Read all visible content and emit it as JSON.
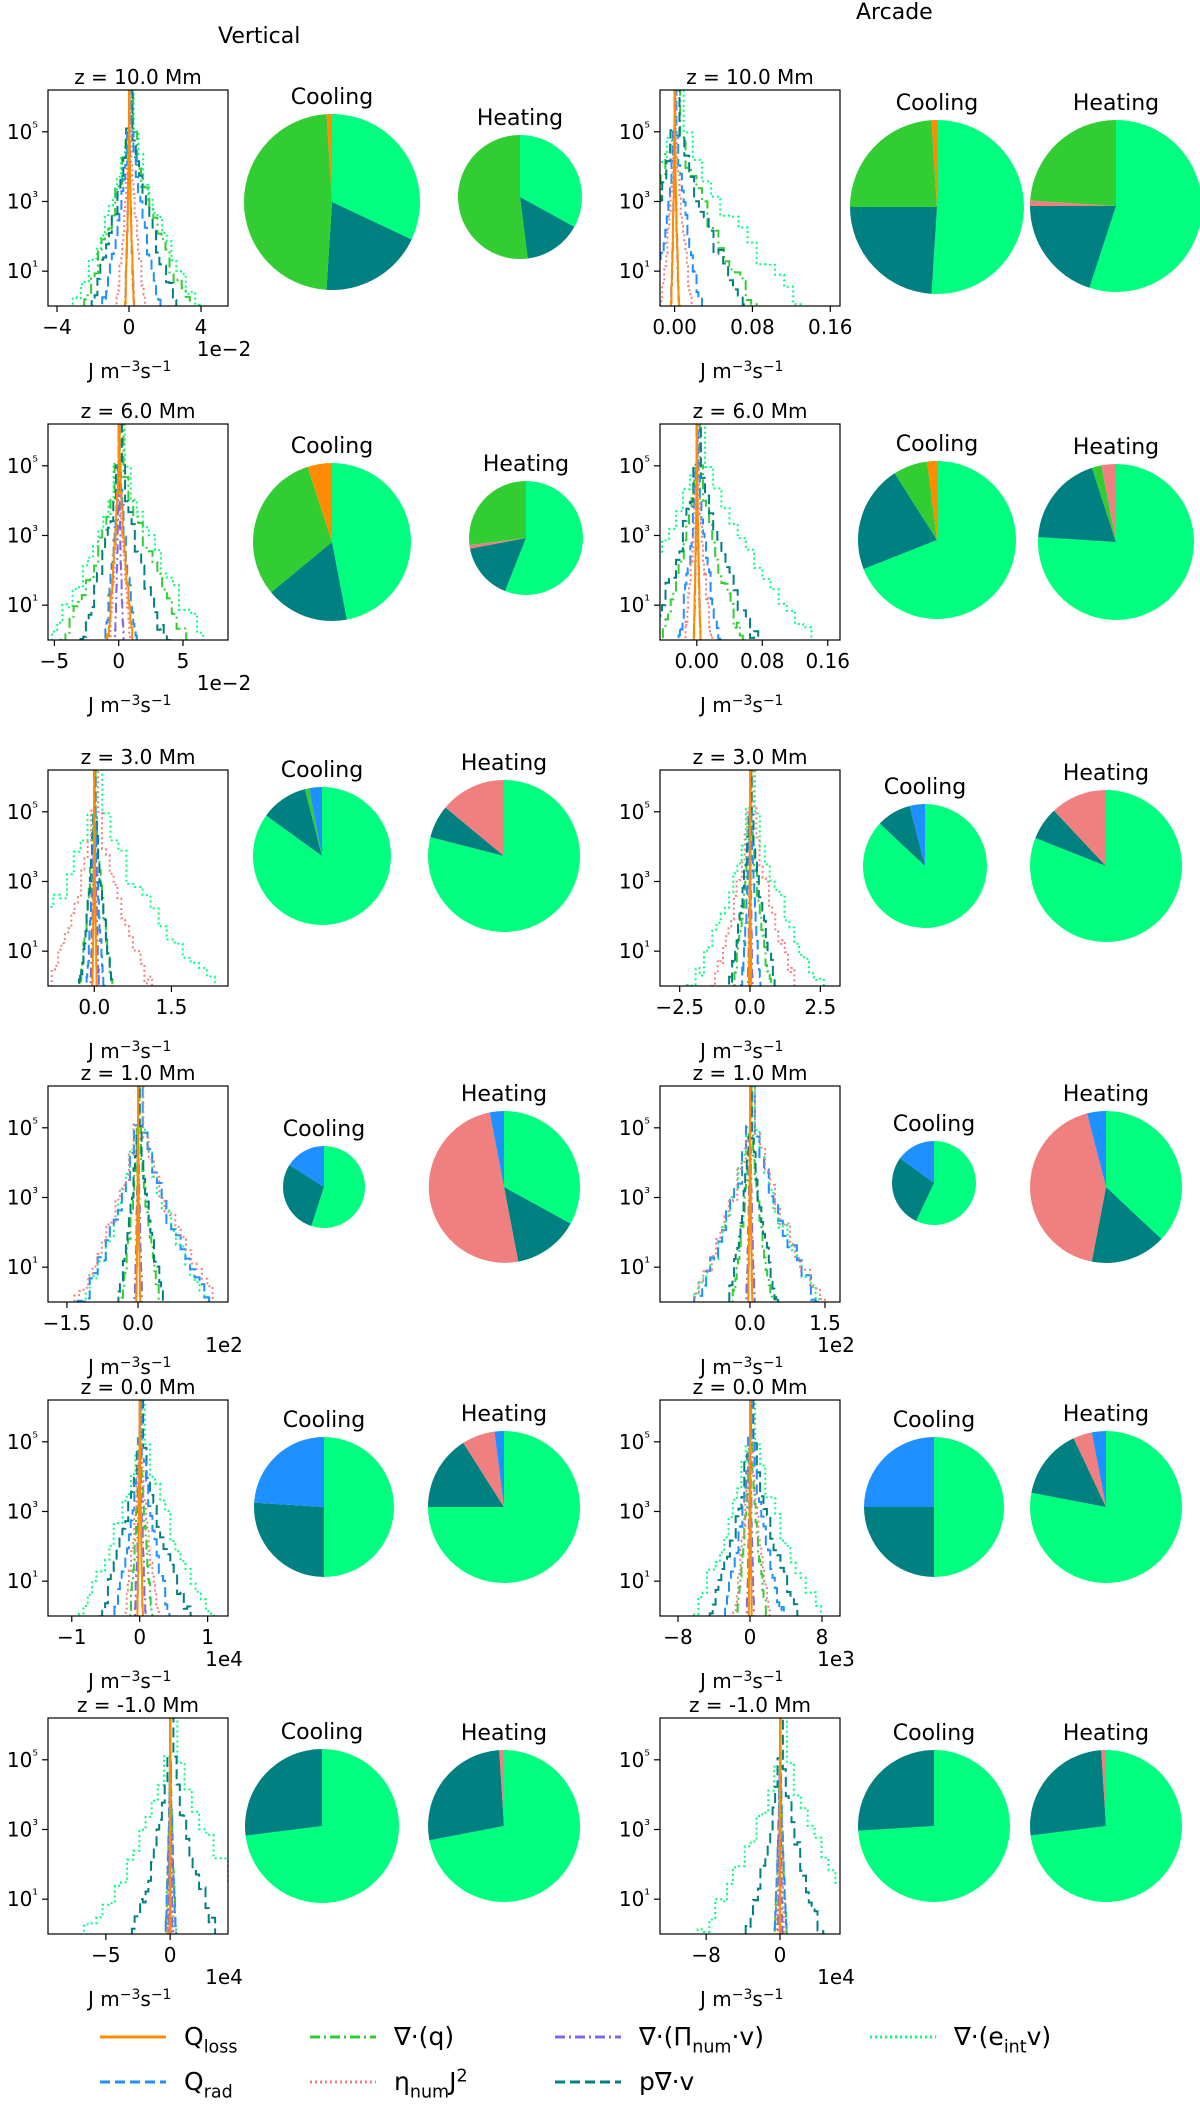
{
  "column_titles": [
    "Vertical",
    "Arcade"
  ],
  "common": {
    "xunit": "J m⁻³s⁻¹",
    "ytick_labels": [
      "10¹",
      "10³",
      "10⁵"
    ],
    "ytick_values": [
      1,
      3,
      5
    ],
    "pie_titles": [
      "Cooling",
      "Heating"
    ],
    "colors": {
      "Q_loss": "#ff8c00",
      "Q_rad": "#1e90ff",
      "div_q": "#32cd32",
      "eta_J2": "#f08080",
      "div_Pi": "#7b68ee",
      "p_div_v": "#008080",
      "div_eint_v": "#00ff7f"
    }
  },
  "legend": [
    {
      "key": "Q_loss",
      "label": "Q_loss",
      "style": "solid"
    },
    {
      "key": "div_q",
      "label": "∇·(q)",
      "style": "dashdot"
    },
    {
      "key": "div_Pi",
      "label": "∇·(Π_num·v)",
      "style": "dashdot"
    },
    {
      "key": "div_eint_v",
      "label": "∇·(e_int v)",
      "style": "dotted"
    },
    {
      "key": "Q_rad",
      "label": "Q_rad",
      "style": "dashed"
    },
    {
      "key": "eta_J2",
      "label": "η_num J²",
      "style": "dotted"
    },
    {
      "key": "p_div_v",
      "label": "p∇·v",
      "style": "dashed"
    }
  ],
  "chart_data": [
    {
      "type": "histogram",
      "column": "Vertical",
      "title": "z = 10.0 Mm",
      "xlim": [
        -4.5,
        5.5
      ],
      "xticks": [
        -4,
        0,
        4
      ],
      "xtick_labels": [
        "−4",
        "0",
        "4"
      ],
      "xscale_label": "1e−2",
      "ylog": true,
      "ylim": [
        0,
        6.2
      ],
      "widths": {
        "div_eint_v": 4.2,
        "div_q": 3.6,
        "p_div_v": 3.0,
        "Q_rad": 2.0,
        "eta_J2": 1.0,
        "div_Pi": 0.3,
        "Q_loss": 0.3
      }
    },
    {
      "type": "pie",
      "column": "Vertical",
      "row": "z = 10.0 Mm",
      "title": "Cooling",
      "slices": [
        {
          "key": "div_eint_v",
          "value": 32
        },
        {
          "key": "p_div_v",
          "value": 19
        },
        {
          "key": "div_q",
          "value": 48
        },
        {
          "key": "Q_loss",
          "value": 1
        }
      ]
    },
    {
      "type": "pie",
      "column": "Vertical",
      "row": "z = 10.0 Mm",
      "title": "Heating",
      "slices": [
        {
          "key": "div_eint_v",
          "value": 33
        },
        {
          "key": "p_div_v",
          "value": 15
        },
        {
          "key": "div_q",
          "value": 52
        }
      ]
    },
    {
      "type": "histogram",
      "column": "Arcade",
      "title": "z = 10.0 Mm",
      "xlim": [
        -0.015,
        0.17
      ],
      "xticks": [
        0,
        0.08,
        0.16
      ],
      "xtick_labels": [
        "0.00",
        "0.08",
        "0.16"
      ],
      "xscale_label": "",
      "ylog": true,
      "ylim": [
        0,
        6.2
      ],
      "widths": {
        "div_eint_v": 0.15,
        "div_q": 0.09,
        "p_div_v": 0.08,
        "Q_rad": 0.03,
        "eta_J2": 0.02,
        "div_Pi": 0.005,
        "Q_loss": 0.005
      }
    },
    {
      "type": "pie",
      "column": "Arcade",
      "row": "z = 10.0 Mm",
      "title": "Cooling",
      "slices": [
        {
          "key": "div_eint_v",
          "value": 51
        },
        {
          "key": "p_div_v",
          "value": 24
        },
        {
          "key": "div_q",
          "value": 24
        },
        {
          "key": "Q_loss",
          "value": 1
        }
      ]
    },
    {
      "type": "pie",
      "column": "Arcade",
      "row": "z = 10.0 Mm",
      "title": "Heating",
      "slices": [
        {
          "key": "div_eint_v",
          "value": 55
        },
        {
          "key": "p_div_v",
          "value": 20
        },
        {
          "key": "eta_J2",
          "value": 1
        },
        {
          "key": "div_q",
          "value": 24
        }
      ]
    },
    {
      "type": "histogram",
      "column": "Vertical",
      "title": "z = 6.0 Mm",
      "xlim": [
        -5.5,
        8.5
      ],
      "xticks": [
        -5,
        0,
        5
      ],
      "xtick_labels": [
        "−5",
        "0",
        "5"
      ],
      "xscale_label": "1e−2",
      "ylog": true,
      "ylim": [
        0,
        6.2
      ],
      "widths": {
        "div_eint_v": 7.5,
        "div_q": 6.0,
        "p_div_v": 4.0,
        "Q_rad": 1.5,
        "eta_J2": 1.0,
        "div_Pi": 0.4,
        "Q_loss": 1.2
      }
    },
    {
      "type": "pie",
      "column": "Vertical",
      "row": "z = 6.0 Mm",
      "title": "Cooling",
      "slices": [
        {
          "key": "div_eint_v",
          "value": 47
        },
        {
          "key": "p_div_v",
          "value": 17
        },
        {
          "key": "div_q",
          "value": 31
        },
        {
          "key": "Q_loss",
          "value": 5
        }
      ]
    },
    {
      "type": "pie",
      "column": "Vertical",
      "row": "z = 6.0 Mm",
      "title": "Heating",
      "slices": [
        {
          "key": "div_eint_v",
          "value": 56
        },
        {
          "key": "p_div_v",
          "value": 16
        },
        {
          "key": "eta_J2",
          "value": 1
        },
        {
          "key": "div_q",
          "value": 27
        }
      ]
    },
    {
      "type": "histogram",
      "column": "Arcade",
      "title": "z = 6.0 Mm",
      "xlim": [
        -0.045,
        0.175
      ],
      "xticks": [
        0,
        0.08,
        0.16
      ],
      "xtick_labels": [
        "0.00",
        "0.08",
        "0.16"
      ],
      "xscale_label": "",
      "ylog": true,
      "ylim": [
        0,
        6.2
      ],
      "widths": {
        "div_eint_v": 0.16,
        "div_q": 0.06,
        "p_div_v": 0.08,
        "Q_rad": 0.03,
        "eta_J2": 0.02,
        "div_Pi": 0.005,
        "Q_loss": 0.005
      }
    },
    {
      "type": "pie",
      "column": "Arcade",
      "row": "z = 6.0 Mm",
      "title": "Cooling",
      "slices": [
        {
          "key": "div_eint_v",
          "value": 69
        },
        {
          "key": "p_div_v",
          "value": 22
        },
        {
          "key": "div_q",
          "value": 7
        },
        {
          "key": "Q_loss",
          "value": 2
        }
      ]
    },
    {
      "type": "pie",
      "column": "Arcade",
      "row": "z = 6.0 Mm",
      "title": "Heating",
      "slices": [
        {
          "key": "div_eint_v",
          "value": 76
        },
        {
          "key": "p_div_v",
          "value": 19
        },
        {
          "key": "div_q",
          "value": 2
        },
        {
          "key": "eta_J2",
          "value": 3
        }
      ]
    },
    {
      "type": "histogram",
      "column": "Vertical",
      "title": "z = 3.0 Mm",
      "xlim": [
        -0.9,
        2.6
      ],
      "xticks": [
        0,
        1.5
      ],
      "xtick_labels": [
        "0.0",
        "1.5"
      ],
      "xscale_label": "",
      "ylog": true,
      "ylim": [
        0,
        6.2
      ],
      "widths": {
        "div_eint_v": 2.5,
        "div_q": 0.4,
        "p_div_v": 0.4,
        "Q_rad": 0.2,
        "eta_J2": 1.2,
        "div_Pi": 0.1,
        "Q_loss": 0.05
      }
    },
    {
      "type": "pie",
      "column": "Vertical",
      "row": "z = 3.0 Mm",
      "title": "Cooling",
      "slices": [
        {
          "key": "div_eint_v",
          "value": 85
        },
        {
          "key": "p_div_v",
          "value": 11
        },
        {
          "key": "div_q",
          "value": 1
        },
        {
          "key": "Q_rad",
          "value": 3
        }
      ]
    },
    {
      "type": "pie",
      "column": "Vertical",
      "row": "z = 3.0 Mm",
      "title": "Heating",
      "slices": [
        {
          "key": "div_eint_v",
          "value": 79
        },
        {
          "key": "p_div_v",
          "value": 7
        },
        {
          "key": "eta_J2",
          "value": 14
        }
      ]
    },
    {
      "type": "histogram",
      "column": "Arcade",
      "title": "z = 3.0 Mm",
      "xlim": [
        -3.2,
        3.2
      ],
      "xticks": [
        -2.5,
        0,
        2.5
      ],
      "xtick_labels": [
        "−2.5",
        "0.0",
        "2.5"
      ],
      "xscale_label": "",
      "ylog": true,
      "ylim": [
        0,
        6.2
      ],
      "widths": {
        "div_eint_v": 2.8,
        "div_q": 0.8,
        "p_div_v": 1.0,
        "Q_rad": 0.4,
        "eta_J2": 1.8,
        "div_Pi": 0.1,
        "Q_loss": 0.05
      }
    },
    {
      "type": "pie",
      "column": "Arcade",
      "row": "z = 3.0 Mm",
      "title": "Cooling",
      "slices": [
        {
          "key": "div_eint_v",
          "value": 87
        },
        {
          "key": "p_div_v",
          "value": 9
        },
        {
          "key": "Q_rad",
          "value": 4
        }
      ]
    },
    {
      "type": "pie",
      "column": "Arcade",
      "row": "z = 3.0 Mm",
      "title": "Heating",
      "slices": [
        {
          "key": "div_eint_v",
          "value": 81
        },
        {
          "key": "p_div_v",
          "value": 7
        },
        {
          "key": "eta_J2",
          "value": 12
        }
      ]
    },
    {
      "type": "histogram",
      "column": "Vertical",
      "title": "z = 1.0 Mm",
      "xlim": [
        -1.9,
        1.9
      ],
      "xticks": [
        -1.5,
        0
      ],
      "xtick_labels": [
        "−1.5",
        "0.0"
      ],
      "xscale_label": "1e2",
      "ylog": true,
      "ylim": [
        0,
        6.2
      ],
      "widths": {
        "div_eint_v": 1.6,
        "div_q": 0.5,
        "p_div_v": 0.6,
        "Q_rad": 1.6,
        "eta_J2": 1.8,
        "div_Pi": 0.1,
        "Q_loss": 0.05
      }
    },
    {
      "type": "pie",
      "column": "Vertical",
      "row": "z = 1.0 Mm",
      "title": "Cooling",
      "slices": [
        {
          "key": "div_eint_v",
          "value": 55
        },
        {
          "key": "p_div_v",
          "value": 29
        },
        {
          "key": "Q_rad",
          "value": 16
        }
      ]
    },
    {
      "type": "pie",
      "column": "Vertical",
      "row": "z = 1.0 Mm",
      "title": "Heating",
      "slices": [
        {
          "key": "div_eint_v",
          "value": 33
        },
        {
          "key": "p_div_v",
          "value": 14
        },
        {
          "key": "eta_J2",
          "value": 50
        },
        {
          "key": "Q_rad",
          "value": 3
        }
      ]
    },
    {
      "type": "histogram",
      "column": "Arcade",
      "title": "z = 1.0 Mm",
      "xlim": [
        -1.8,
        1.8
      ],
      "xticks": [
        0,
        1.5
      ],
      "xtick_labels": [
        "0.0",
        "1.5"
      ],
      "xscale_label": "1e2",
      "ylog": true,
      "ylim": [
        0,
        6.2
      ],
      "widths": {
        "div_eint_v": 1.5,
        "div_q": 0.5,
        "p_div_v": 0.6,
        "Q_rad": 1.5,
        "eta_J2": 1.6,
        "div_Pi": 0.1,
        "Q_loss": 0.05
      }
    },
    {
      "type": "pie",
      "column": "Arcade",
      "row": "z = 1.0 Mm",
      "title": "Cooling",
      "slices": [
        {
          "key": "div_eint_v",
          "value": 57
        },
        {
          "key": "p_div_v",
          "value": 28
        },
        {
          "key": "Q_rad",
          "value": 15
        }
      ]
    },
    {
      "type": "pie",
      "column": "Arcade",
      "row": "z = 1.0 Mm",
      "title": "Heating",
      "slices": [
        {
          "key": "div_eint_v",
          "value": 37
        },
        {
          "key": "p_div_v",
          "value": 16
        },
        {
          "key": "eta_J2",
          "value": 43
        },
        {
          "key": "Q_rad",
          "value": 4
        }
      ]
    },
    {
      "type": "histogram",
      "column": "Vertical",
      "title": "z = 0.0 Mm",
      "xlim": [
        -1.35,
        1.3
      ],
      "xticks": [
        -1,
        0,
        1
      ],
      "xtick_labels": [
        "−1",
        "0",
        "1"
      ],
      "xscale_label": "1e4",
      "ylog": true,
      "ylim": [
        0,
        6.2
      ],
      "widths": {
        "div_eint_v": 1.2,
        "div_q": 0.2,
        "p_div_v": 0.8,
        "Q_rad": 0.5,
        "eta_J2": 0.3,
        "div_Pi": 0.1,
        "Q_loss": 0.05
      }
    },
    {
      "type": "pie",
      "column": "Vertical",
      "row": "z = 0.0 Mm",
      "title": "Cooling",
      "slices": [
        {
          "key": "div_eint_v",
          "value": 50
        },
        {
          "key": "p_div_v",
          "value": 26
        },
        {
          "key": "Q_rad",
          "value": 24
        }
      ]
    },
    {
      "type": "pie",
      "column": "Vertical",
      "row": "z = 0.0 Mm",
      "title": "Heating",
      "slices": [
        {
          "key": "div_eint_v",
          "value": 75
        },
        {
          "key": "p_div_v",
          "value": 16
        },
        {
          "key": "eta_J2",
          "value": 7
        },
        {
          "key": "Q_rad",
          "value": 2
        }
      ]
    },
    {
      "type": "histogram",
      "column": "Arcade",
      "title": "z = 0.0 Mm",
      "xlim": [
        -10,
        10
      ],
      "xticks": [
        -8,
        0,
        8
      ],
      "xtick_labels": [
        "−8",
        "0",
        "8"
      ],
      "xscale_label": "1e3",
      "ylog": true,
      "ylim": [
        0,
        6.2
      ],
      "widths": {
        "div_eint_v": 9.0,
        "div_q": 2.0,
        "p_div_v": 6.0,
        "Q_rad": 4.0,
        "eta_J2": 2.5,
        "div_Pi": 0.5,
        "Q_loss": 0.2
      }
    },
    {
      "type": "pie",
      "column": "Arcade",
      "row": "z = 0.0 Mm",
      "title": "Cooling",
      "slices": [
        {
          "key": "div_eint_v",
          "value": 50
        },
        {
          "key": "p_div_v",
          "value": 25
        },
        {
          "key": "Q_rad",
          "value": 25
        }
      ]
    },
    {
      "type": "pie",
      "column": "Arcade",
      "row": "z = 0.0 Mm",
      "title": "Heating",
      "slices": [
        {
          "key": "div_eint_v",
          "value": 78
        },
        {
          "key": "p_div_v",
          "value": 15
        },
        {
          "key": "eta_J2",
          "value": 4
        },
        {
          "key": "Q_rad",
          "value": 3
        }
      ]
    },
    {
      "type": "histogram",
      "column": "Vertical",
      "title": "z = -1.0 Mm",
      "xlim": [
        -9.5,
        4.5
      ],
      "xticks": [
        -5,
        0
      ],
      "xtick_labels": [
        "−5",
        "0"
      ],
      "xscale_label": "1e4",
      "ylog": true,
      "ylim": [
        0,
        6.2
      ],
      "widths": {
        "div_eint_v": 9.0,
        "div_q": 0.5,
        "p_div_v": 4.0,
        "Q_rad": 0.5,
        "eta_J2": 0.3,
        "div_Pi": 0.2,
        "Q_loss": 0.05
      }
    },
    {
      "type": "pie",
      "column": "Vertical",
      "row": "z = -1.0 Mm",
      "title": "Cooling",
      "slices": [
        {
          "key": "div_eint_v",
          "value": 73
        },
        {
          "key": "p_div_v",
          "value": 27
        }
      ]
    },
    {
      "type": "pie",
      "column": "Vertical",
      "row": "z = -1.0 Mm",
      "title": "Heating",
      "slices": [
        {
          "key": "div_eint_v",
          "value": 72
        },
        {
          "key": "p_div_v",
          "value": 27
        },
        {
          "key": "eta_J2",
          "value": 1
        }
      ]
    },
    {
      "type": "histogram",
      "column": "Arcade",
      "title": "z = -1.0 Mm",
      "xlim": [
        -13,
        6.5
      ],
      "xticks": [
        -8,
        0
      ],
      "xtick_labels": [
        "−8",
        "0"
      ],
      "xscale_label": "1e4",
      "ylog": true,
      "ylim": [
        0,
        6.2
      ],
      "widths": {
        "div_eint_v": 12.0,
        "div_q": 0.8,
        "p_div_v": 5.0,
        "Q_rad": 0.8,
        "eta_J2": 0.5,
        "div_Pi": 0.3,
        "Q_loss": 0.05
      }
    },
    {
      "type": "pie",
      "column": "Arcade",
      "row": "z = -1.0 Mm",
      "title": "Cooling",
      "slices": [
        {
          "key": "div_eint_v",
          "value": 74
        },
        {
          "key": "p_div_v",
          "value": 26
        }
      ]
    },
    {
      "type": "pie",
      "column": "Arcade",
      "row": "z = -1.0 Mm",
      "title": "Heating",
      "slices": [
        {
          "key": "div_eint_v",
          "value": 73
        },
        {
          "key": "p_div_v",
          "value": 26
        },
        {
          "key": "eta_J2",
          "value": 1
        }
      ]
    }
  ]
}
